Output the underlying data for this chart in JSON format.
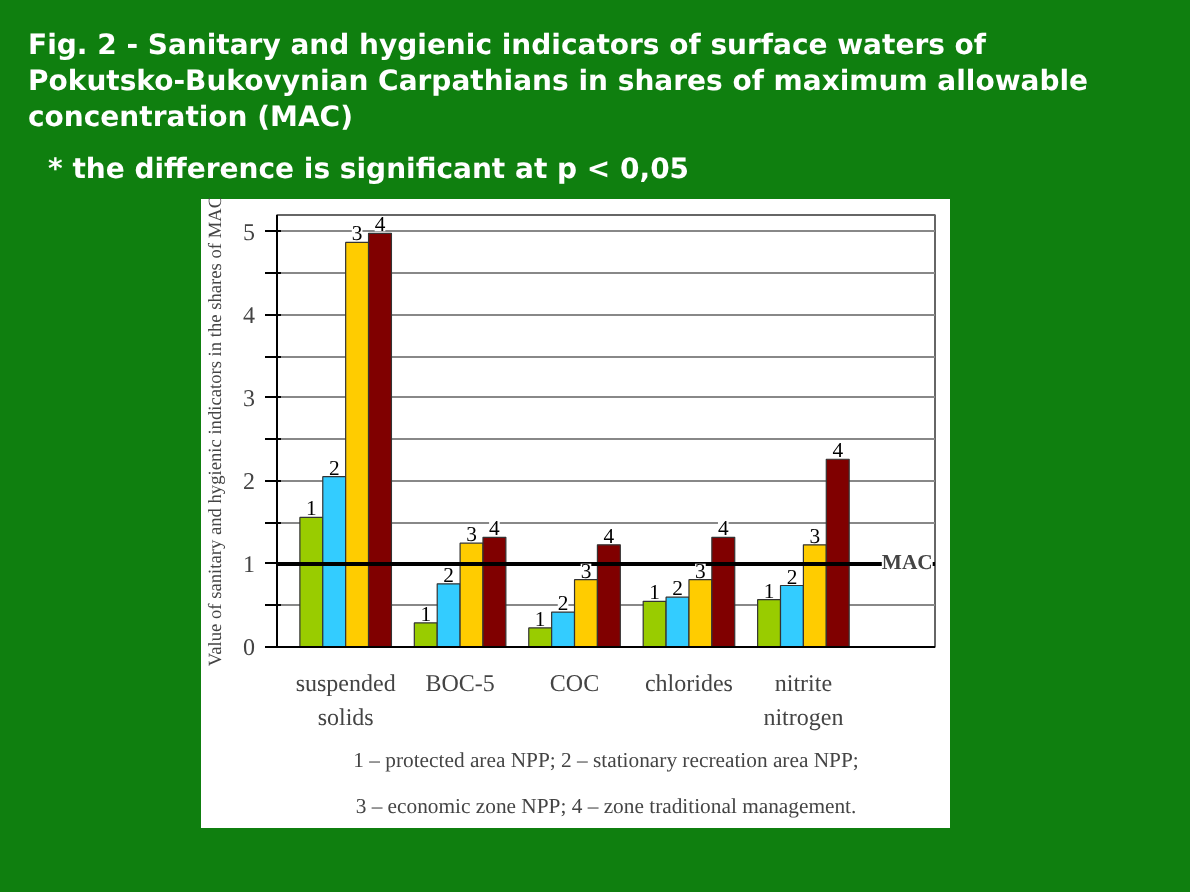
{
  "chart_data": {
    "type": "bar",
    "title": "Fig. 2 - Sanitary and hygienic indicators of surface waters of Pokutsko-Bukovynian Carpathians in shares of maximum allowable concentration (MAC)",
    "ylabel": "Value of sanitary and hygienic indicators in the shares of MAC",
    "categories": [
      "suspended solids",
      "BOC-5",
      "COC",
      "chlorides",
      "nitrite nitrogen"
    ],
    "series": [
      {
        "name": "1",
        "color": "#99cc00",
        "values": [
          1.56,
          0.29,
          0.23,
          0.55,
          0.57
        ]
      },
      {
        "name": "2",
        "color": "#33ccff",
        "values": [
          2.05,
          0.76,
          0.42,
          0.6,
          0.74
        ]
      },
      {
        "name": "3",
        "color": "#ffcc00",
        "values": [
          4.87,
          1.25,
          0.81,
          0.81,
          1.23
        ]
      },
      {
        "name": "4",
        "color": "#800000",
        "values": [
          4.98,
          1.32,
          1.23,
          1.32,
          2.26
        ]
      }
    ],
    "ylim": [
      0,
      5.2
    ],
    "yticks": [
      0,
      {
        "value": 0.5,
        "label": null
      },
      1,
      {
        "value": 1.5,
        "label": null
      },
      2,
      {
        "value": 2.5,
        "label": null
      },
      3,
      {
        "value": 3.5,
        "label": null
      },
      4,
      {
        "value": 4.5,
        "label": null
      },
      5
    ],
    "grid": "y",
    "ref_lines": [
      {
        "axis": "y",
        "value": 1,
        "label": "MAC",
        "color": "#000000"
      }
    ],
    "annotations": [
      "* the difference is significant at p < 0,05",
      "1 – protected area NPP; 2 – stationary recreation area NPP;",
      "3 – economic zone NPP; 4 – zone traditional management."
    ]
  }
}
